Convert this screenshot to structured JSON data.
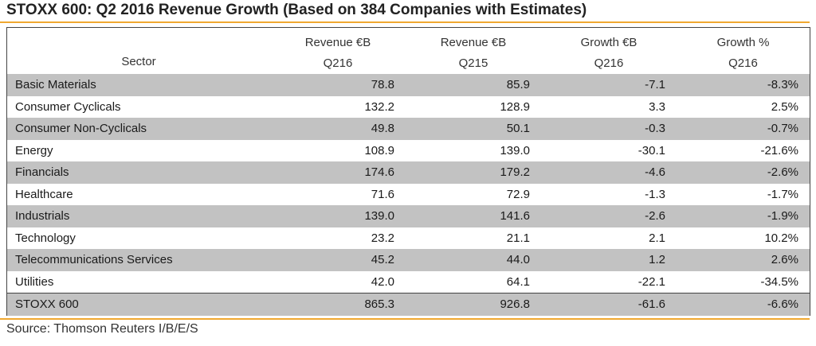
{
  "title": "STOXX 600: Q2 2016 Revenue Growth (Based on 384 Companies with Estimates)",
  "columns": [
    {
      "line1": "",
      "line2": "Sector"
    },
    {
      "line1": "Revenue €B",
      "line2": "Q216"
    },
    {
      "line1": "Revenue €B",
      "line2": "Q215"
    },
    {
      "line1": "Growth €B",
      "line2": "Q216"
    },
    {
      "line1": "Growth %",
      "line2": "Q216"
    }
  ],
  "rows": [
    {
      "sector": "Basic Materials",
      "rev_q216": "78.8",
      "rev_q215": "85.9",
      "growth_eur": "-7.1",
      "growth_pct": "-8.3%"
    },
    {
      "sector": "Consumer Cyclicals",
      "rev_q216": "132.2",
      "rev_q215": "128.9",
      "growth_eur": "3.3",
      "growth_pct": "2.5%"
    },
    {
      "sector": "Consumer Non-Cyclicals",
      "rev_q216": "49.8",
      "rev_q215": "50.1",
      "growth_eur": "-0.3",
      "growth_pct": "-0.7%"
    },
    {
      "sector": "Energy",
      "rev_q216": "108.9",
      "rev_q215": "139.0",
      "growth_eur": "-30.1",
      "growth_pct": "-21.6%"
    },
    {
      "sector": "Financials",
      "rev_q216": "174.6",
      "rev_q215": "179.2",
      "growth_eur": "-4.6",
      "growth_pct": "-2.6%"
    },
    {
      "sector": "Healthcare",
      "rev_q216": "71.6",
      "rev_q215": "72.9",
      "growth_eur": "-1.3",
      "growth_pct": "-1.7%"
    },
    {
      "sector": "Industrials",
      "rev_q216": "139.0",
      "rev_q215": "141.6",
      "growth_eur": "-2.6",
      "growth_pct": "-1.9%"
    },
    {
      "sector": "Technology",
      "rev_q216": "23.2",
      "rev_q215": "21.1",
      "growth_eur": "2.1",
      "growth_pct": "10.2%"
    },
    {
      "sector": "Telecommunications Services",
      "rev_q216": "45.2",
      "rev_q215": "44.0",
      "growth_eur": "1.2",
      "growth_pct": "2.6%"
    },
    {
      "sector": "Utilities",
      "rev_q216": "42.0",
      "rev_q215": "64.1",
      "growth_eur": "-22.1",
      "growth_pct": "-34.5%"
    }
  ],
  "total": {
    "sector": "STOXX 600",
    "rev_q216": "865.3",
    "rev_q215": "926.8",
    "growth_eur": "-61.6",
    "growth_pct": "-6.6%"
  },
  "source": "Source: Thomson Reuters I/B/E/S",
  "colors": {
    "accent_rule": "#f0a830",
    "band": "#c2c2c2"
  }
}
